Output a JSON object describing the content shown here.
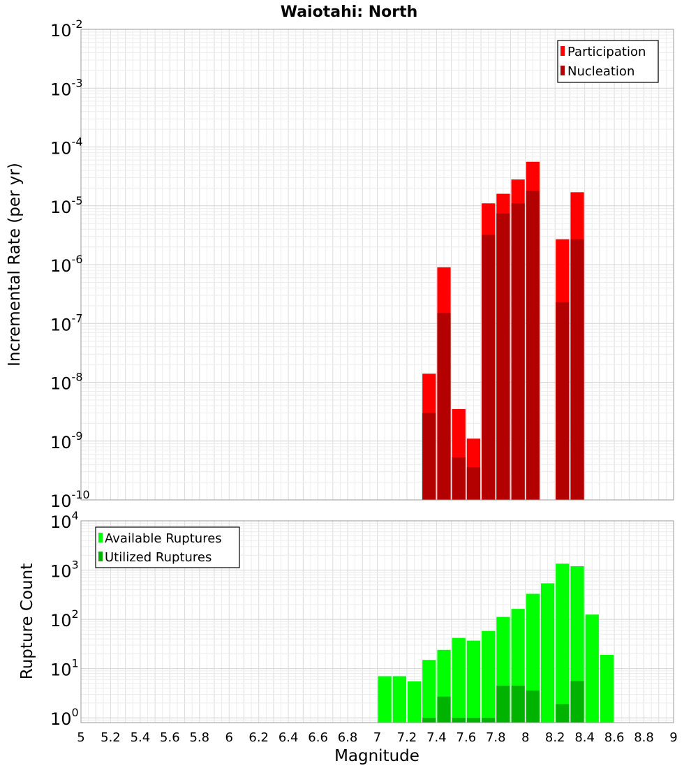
{
  "figure": {
    "title": "Waiotahi: North",
    "xlabel": "Magnitude",
    "xlim": [
      5,
      9
    ],
    "xticks": [
      "5",
      "5.2",
      "5.4",
      "5.6",
      "5.8",
      "6",
      "6.2",
      "6.4",
      "6.6",
      "6.8",
      "7",
      "7.2",
      "7.4",
      "7.6",
      "7.8",
      "8",
      "8.2",
      "8.4",
      "8.6",
      "8.8",
      "9"
    ]
  },
  "chart_data": [
    {
      "type": "bar",
      "ylabel": "Incremental Rate (per yr)",
      "yscale": "log",
      "ylim": [
        1e-10,
        0.01
      ],
      "ytick_exponents": [
        "-10",
        "-9",
        "-8",
        "-7",
        "-6",
        "-5",
        "-4",
        "-3",
        "-2"
      ],
      "grid": true,
      "legend": "top-right",
      "colors": {
        "Participation": "#ff0000",
        "Nucleation": "#b30000"
      },
      "x": [
        7.35,
        7.45,
        7.55,
        7.65,
        7.75,
        7.85,
        7.95,
        8.05,
        8.25,
        8.35
      ],
      "series": [
        {
          "name": "Participation",
          "values": [
            1.4e-08,
            9e-07,
            3.5e-09,
            1.1e-09,
            1.1e-05,
            1.6e-05,
            2.8e-05,
            5.6e-05,
            2.7e-06,
            1.7e-05
          ]
        },
        {
          "name": "Nucleation",
          "values": [
            3e-09,
            1.5e-07,
            5.3e-10,
            3.6e-10,
            3.2e-06,
            7.4e-06,
            1.1e-05,
            1.8e-05,
            2.3e-07,
            2.7e-06
          ]
        }
      ]
    },
    {
      "type": "bar",
      "ylabel": "Rupture Count",
      "yscale": "log",
      "ylim": [
        0.8,
        10000
      ],
      "ytick_exponents": [
        "0",
        "1",
        "2",
        "3",
        "4"
      ],
      "grid": true,
      "legend": "top-left",
      "colors": {
        "Available Ruptures": "#00ff00",
        "Utilized Ruptures": "#00b300"
      },
      "x": [
        7.05,
        7.15,
        7.25,
        7.35,
        7.45,
        7.55,
        7.65,
        7.75,
        7.85,
        7.95,
        8.05,
        8.15,
        8.25,
        8.35,
        8.45,
        8.55
      ],
      "series": [
        {
          "name": "Available Ruptures",
          "values": [
            7,
            7,
            5.5,
            15,
            24,
            42,
            37,
            58,
            112,
            163,
            330,
            540,
            1350,
            1200,
            125,
            19
          ]
        },
        {
          "name": "Utilized Ruptures",
          "values": [
            0,
            0,
            0,
            1,
            2.7,
            1,
            1,
            1,
            4.5,
            4.5,
            3.6,
            0,
            1.9,
            5.6,
            0,
            0
          ]
        }
      ]
    }
  ]
}
